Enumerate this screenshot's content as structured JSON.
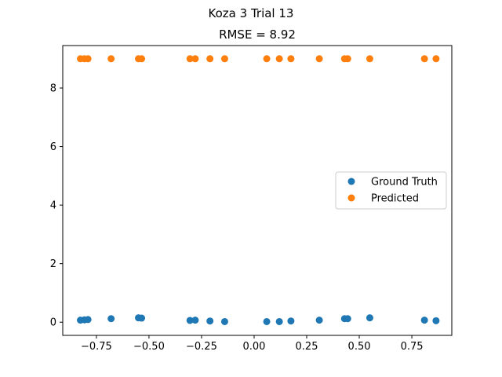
{
  "suptitle": "Koza 3 Trial 13",
  "chart_data": {
    "type": "scatter",
    "title": "RMSE = 8.92",
    "xlabel": "",
    "ylabel": "",
    "xlim": [
      -0.91,
      0.94
    ],
    "ylim": [
      -0.45,
      9.45
    ],
    "grid": false,
    "legend_position": "center-right",
    "x_ticks": [
      -0.75,
      -0.5,
      -0.25,
      0.0,
      0.25,
      0.5,
      0.75
    ],
    "x_tick_labels": [
      "−0.75",
      "−0.50",
      "−0.25",
      "0.00",
      "0.25",
      "0.50",
      "0.75"
    ],
    "y_ticks": [
      0,
      2,
      4,
      6,
      8
    ],
    "y_tick_labels": [
      "0",
      "2",
      "4",
      "6",
      "8"
    ],
    "series": [
      {
        "name": "Ground Truth",
        "color": "#1f77b4",
        "points": [
          [
            -0.826,
            0.07
          ],
          [
            -0.807,
            0.08
          ],
          [
            -0.79,
            0.09
          ],
          [
            -0.68,
            0.12
          ],
          [
            -0.55,
            0.15
          ],
          [
            -0.535,
            0.14
          ],
          [
            -0.305,
            0.06
          ],
          [
            -0.28,
            0.07
          ],
          [
            -0.21,
            0.04
          ],
          [
            -0.14,
            0.02
          ],
          [
            0.06,
            0.02
          ],
          [
            0.12,
            0.02
          ],
          [
            0.175,
            0.04
          ],
          [
            0.31,
            0.07
          ],
          [
            0.43,
            0.12
          ],
          [
            0.445,
            0.12
          ],
          [
            0.55,
            0.15
          ],
          [
            0.81,
            0.07
          ],
          [
            0.865,
            0.05
          ]
        ]
      },
      {
        "name": "Predicted",
        "color": "#ff7f0e",
        "points": [
          [
            -0.826,
            9.0
          ],
          [
            -0.807,
            9.0
          ],
          [
            -0.79,
            9.0
          ],
          [
            -0.68,
            9.0
          ],
          [
            -0.55,
            9.0
          ],
          [
            -0.535,
            9.0
          ],
          [
            -0.305,
            9.0
          ],
          [
            -0.28,
            9.0
          ],
          [
            -0.21,
            9.0
          ],
          [
            -0.14,
            9.0
          ],
          [
            0.06,
            9.0
          ],
          [
            0.12,
            9.0
          ],
          [
            0.175,
            9.0
          ],
          [
            0.31,
            9.0
          ],
          [
            0.43,
            9.0
          ],
          [
            0.445,
            9.0
          ],
          [
            0.55,
            9.0
          ],
          [
            0.81,
            9.0
          ],
          [
            0.865,
            9.0
          ]
        ]
      }
    ]
  }
}
